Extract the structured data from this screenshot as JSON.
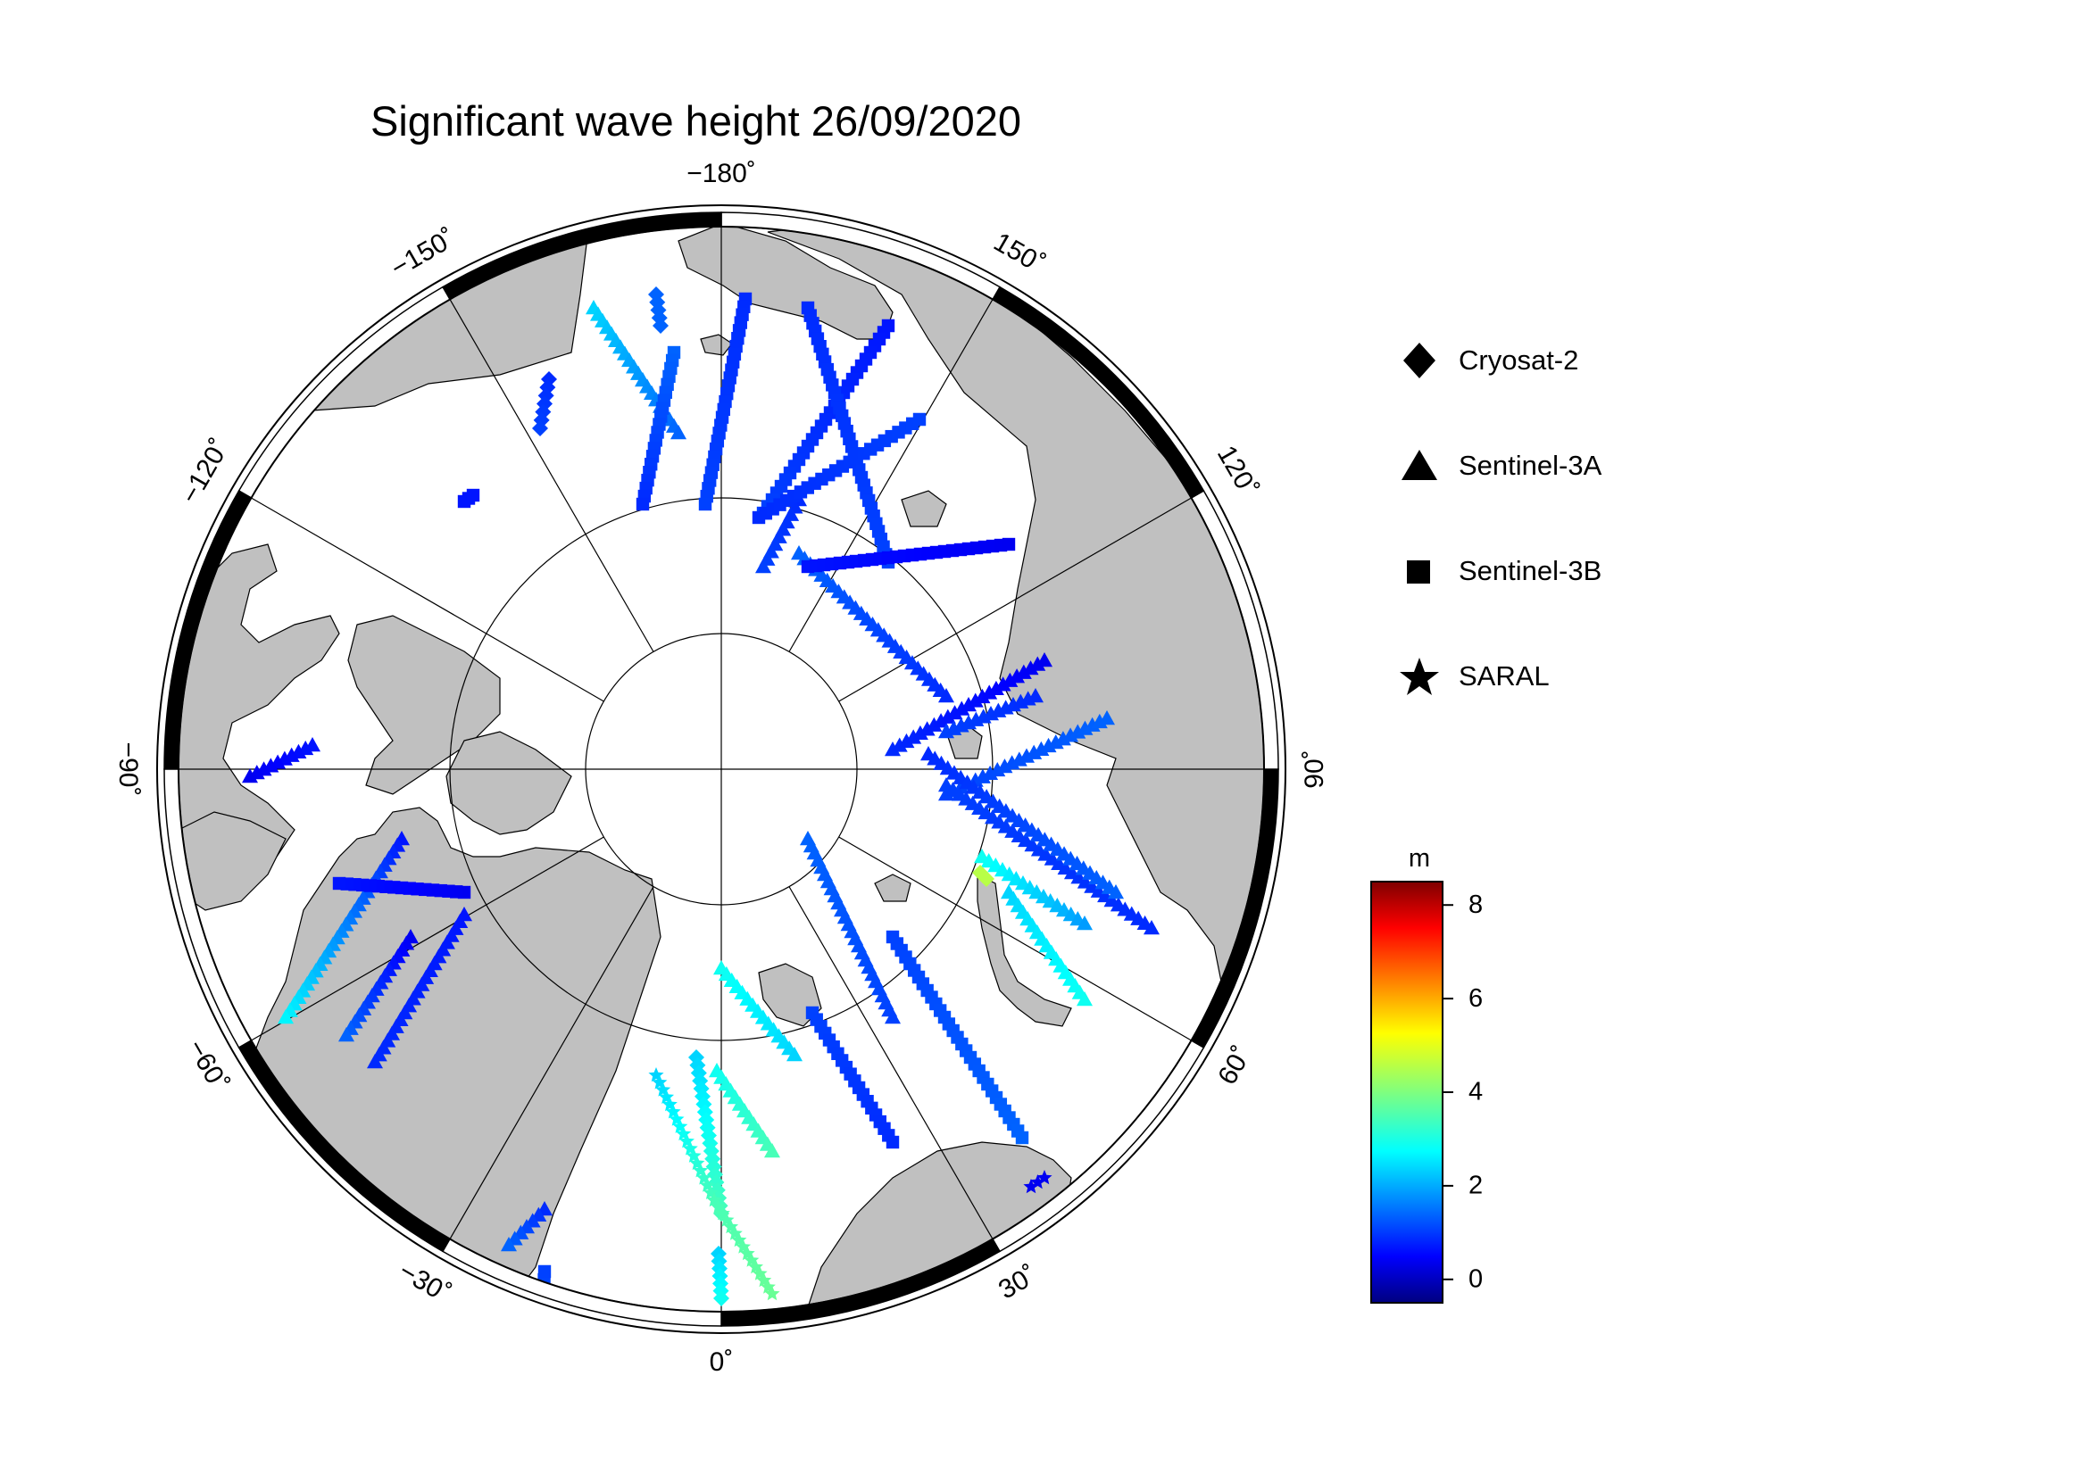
{
  "title": "Significant wave height 26/09/2020",
  "map": {
    "projection": "north-polar-stereographic",
    "longitude_labels": [
      {
        "text": "−180˚",
        "lon": 180
      },
      {
        "text": "150˚",
        "lon": 150
      },
      {
        "text": "120˚",
        "lon": 120
      },
      {
        "text": "90˚",
        "lon": 90
      },
      {
        "text": "60˚",
        "lon": 60
      },
      {
        "text": "30˚",
        "lon": 30
      },
      {
        "text": "0˚",
        "lon": 0
      },
      {
        "text": "−30˚",
        "lon": -30
      },
      {
        "text": "−60˚",
        "lon": -60
      },
      {
        "text": "−90˚",
        "lon": -90
      },
      {
        "text": "−120˚",
        "lon": -120
      },
      {
        "text": "−150˚",
        "lon": -150
      }
    ],
    "latitude_circles": [
      70,
      80
    ],
    "land_color": "#c0c0c0",
    "ocean_color": "#ffffff"
  },
  "legend": [
    {
      "label": "Cryosat-2",
      "symbol": "diamond-icon"
    },
    {
      "label": "Sentinel-3A",
      "symbol": "triangle-icon"
    },
    {
      "label": "Sentinel-3B",
      "symbol": "square-icon"
    },
    {
      "label": "SARAL",
      "symbol": "star-icon"
    }
  ],
  "colorbar": {
    "unit": "m",
    "min": -0.5,
    "max": 8.5,
    "ticks": [
      0,
      2,
      4,
      6,
      8
    ],
    "colormap": "jet"
  },
  "chart_data": {
    "type": "scatter",
    "title": "Significant wave height 26/09/2020",
    "value_unit": "m",
    "tracks": [
      {
        "satellite": "Sentinel-3A",
        "from": [
          1000,
          840
        ],
        "to": [
          1170,
          740
        ],
        "v0": 1.0,
        "v1": 0.5
      },
      {
        "satellite": "Sentinel-3A",
        "from": [
          1060,
          890
        ],
        "to": [
          1240,
          805
        ],
        "v0": 1.2,
        "v1": 1.5
      },
      {
        "satellite": "Sentinel-3A",
        "from": [
          895,
          560
        ],
        "to": [
          855,
          635
        ],
        "v0": 1.0,
        "v1": 1.2
      },
      {
        "satellite": "Sentinel-3A",
        "from": [
          1060,
          880
        ],
        "to": [
          1290,
          1040
        ],
        "v0": 1.2,
        "v1": 1.0
      },
      {
        "satellite": "Sentinel-3A",
        "from": [
          895,
          620
        ],
        "to": [
          1060,
          780
        ],
        "v0": 1.5,
        "v1": 1.0
      },
      {
        "satellite": "Sentinel-3A",
        "from": [
          1040,
          845
        ],
        "to": [
          1250,
          1000
        ],
        "v0": 1.0,
        "v1": 1.5
      },
      {
        "satellite": "Sentinel-3A",
        "from": [
          1060,
          820
        ],
        "to": [
          1160,
          780
        ],
        "v0": 1.2,
        "v1": 1.0
      },
      {
        "satellite": "Sentinel-3A",
        "from": [
          1100,
          960
        ],
        "to": [
          1215,
          1035
        ],
        "v0": 3.0,
        "v1": 2.0
      },
      {
        "satellite": "Sentinel-3A",
        "from": [
          1130,
          1000
        ],
        "to": [
          1215,
          1120
        ],
        "v0": 2.5,
        "v1": 3.0
      },
      {
        "satellite": "Sentinel-3A",
        "from": [
          905,
          940
        ],
        "to": [
          1000,
          1140
        ],
        "v0": 1.5,
        "v1": 1.2
      },
      {
        "satellite": "Sentinel-3A",
        "from": [
          808,
          1085
        ],
        "to": [
          890,
          1182
        ],
        "v0": 3.0,
        "v1": 2.5
      },
      {
        "satellite": "Sentinel-3A",
        "from": [
          803,
          1200
        ],
        "to": [
          865,
          1290
        ],
        "v0": 3.0,
        "v1": 3.5
      },
      {
        "satellite": "Sentinel-3A",
        "from": [
          520,
          1025
        ],
        "to": [
          420,
          1190
        ],
        "v0": 0.8,
        "v1": 1.0
      },
      {
        "satellite": "Sentinel-3A",
        "from": [
          450,
          940
        ],
        "to": [
          320,
          1140
        ],
        "v0": 0.8,
        "v1": 2.8
      },
      {
        "satellite": "Sentinel-3A",
        "from": [
          460,
          1050
        ],
        "to": [
          388,
          1160
        ],
        "v0": 0.5,
        "v1": 1.5
      },
      {
        "satellite": "Sentinel-3A",
        "from": [
          350,
          835
        ],
        "to": [
          280,
          870
        ],
        "v0": 0.8,
        "v1": 0.5
      },
      {
        "satellite": "Sentinel-3A",
        "from": [
          610,
          1355
        ],
        "to": [
          570,
          1395
        ],
        "v0": 1.0,
        "v1": 1.5
      },
      {
        "satellite": "Sentinel-3A",
        "from": [
          665,
          345
        ],
        "to": [
          760,
          485
        ],
        "v0": 2.5,
        "v1": 1.5
      },
      {
        "satellite": "Sentinel-3B",
        "from": [
          755,
          395
        ],
        "to": [
          720,
          565
        ],
        "v0": 1.5,
        "v1": 1.0
      },
      {
        "satellite": "Sentinel-3B",
        "from": [
          835,
          335
        ],
        "to": [
          790,
          565
        ],
        "v0": 1.0,
        "v1": 1.2
      },
      {
        "satellite": "Sentinel-3B",
        "from": [
          995,
          365
        ],
        "to": [
          855,
          575
        ],
        "v0": 0.8,
        "v1": 1.2
      },
      {
        "satellite": "Sentinel-3B",
        "from": [
          905,
          345
        ],
        "to": [
          995,
          630
        ],
        "v0": 1.0,
        "v1": 1.2
      },
      {
        "satellite": "Sentinel-3B",
        "from": [
          905,
          635
        ],
        "to": [
          1130,
          610
        ],
        "v0": 0.8,
        "v1": 0.5
      },
      {
        "satellite": "Sentinel-3B",
        "from": [
          850,
          580
        ],
        "to": [
          1030,
          470
        ],
        "v0": 1.0,
        "v1": 1.2
      },
      {
        "satellite": "Sentinel-3B",
        "from": [
          1000,
          1050
        ],
        "to": [
          1145,
          1275
        ],
        "v0": 1.2,
        "v1": 1.5
      },
      {
        "satellite": "Sentinel-3B",
        "from": [
          910,
          1135
        ],
        "to": [
          1000,
          1280
        ],
        "v0": 1.2,
        "v1": 1.0
      },
      {
        "satellite": "Sentinel-3B",
        "from": [
          605,
          1525
        ],
        "to": [
          610,
          1425
        ],
        "v0": 1.5,
        "v1": 1.2
      },
      {
        "satellite": "Sentinel-3B",
        "from": [
          520,
          1000
        ],
        "to": [
          380,
          990
        ],
        "v0": 0.5,
        "v1": 0.8
      },
      {
        "satellite": "Sentinel-3B",
        "from": [
          530,
          555
        ],
        "to": [
          520,
          562
        ],
        "v0": 0.8,
        "v1": 0.8
      },
      {
        "satellite": "Cryosat-2",
        "from": [
          735,
          330
        ],
        "to": [
          740,
          365
        ],
        "v0": 1.5,
        "v1": 1.5
      },
      {
        "satellite": "Cryosat-2",
        "from": [
          615,
          425
        ],
        "to": [
          605,
          480
        ],
        "v0": 1.0,
        "v1": 1.2
      },
      {
        "satellite": "Cryosat-2",
        "from": [
          780,
          1185
        ],
        "to": [
          808,
          1360
        ],
        "v0": 2.5,
        "v1": 3.5
      },
      {
        "satellite": "Cryosat-2",
        "from": [
          805,
          1405
        ],
        "to": [
          808,
          1455
        ],
        "v0": 2.5,
        "v1": 3.0
      },
      {
        "satellite": "Cryosat-2",
        "from": [
          1098,
          978
        ],
        "to": [
          1105,
          985
        ],
        "v0": 4.5,
        "v1": 4.5
      },
      {
        "satellite": "SARAL",
        "from": [
          735,
          1205
        ],
        "to": [
          800,
          1345
        ],
        "v0": 2.5,
        "v1": 3.5
      },
      {
        "satellite": "SARAL",
        "from": [
          800,
          1345
        ],
        "to": [
          865,
          1450
        ],
        "v0": 3.5,
        "v1": 3.8
      },
      {
        "satellite": "SARAL",
        "from": [
          1155,
          1330
        ],
        "to": [
          1170,
          1320
        ],
        "v0": 0.5,
        "v1": 0.5
      }
    ]
  }
}
